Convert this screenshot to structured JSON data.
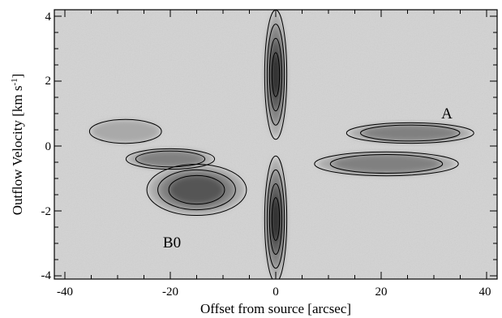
{
  "chart_data": {
    "type": "heatmap",
    "title": "",
    "xlabel": "Offset from source [arcsec]",
    "ylabel_main": "Outflow Velocity  [km s",
    "ylabel_sup": "-1",
    "ylabel_close": "]",
    "xlim": [
      -42,
      42
    ],
    "ylim": [
      -4.1,
      4.2
    ],
    "xticks": [
      -40,
      -20,
      0,
      20,
      40
    ],
    "yticks": [
      -4,
      -2,
      0,
      2,
      4
    ],
    "grid": false,
    "colormap": "grayscale, darker = stronger emission",
    "annotations": [
      {
        "text": "A",
        "x": 32.5,
        "y": 0.85
      },
      {
        "text": "B0",
        "x": -19.5,
        "y": -2.9
      }
    ],
    "features": [
      {
        "name": "systemic-red",
        "x": [
          -2,
          2
        ],
        "y": [
          0.3,
          4.1
        ],
        "peak": 1.0
      },
      {
        "name": "systemic-blue",
        "x": [
          -2,
          2
        ],
        "y": [
          -4.1,
          -0.4
        ],
        "peak": 1.0
      },
      {
        "name": "lobe-A-red",
        "x": [
          14,
          37
        ],
        "y": [
          0.1,
          0.7
        ],
        "peak": 0.55
      },
      {
        "name": "lobe-A-blue",
        "x": [
          8,
          34
        ],
        "y": [
          -0.9,
          -0.2
        ],
        "peak": 0.6
      },
      {
        "name": "lobe-B0-blue",
        "x": [
          -24,
          -6
        ],
        "y": [
          -2.1,
          -0.6
        ],
        "peak": 0.65
      },
      {
        "name": "lobe-B-red",
        "x": [
          -35,
          -22
        ],
        "y": [
          0.1,
          0.8
        ],
        "peak": 0.35
      },
      {
        "name": "lobe-B-mid",
        "x": [
          -28,
          -12
        ],
        "y": [
          -0.7,
          -0.1
        ],
        "peak": 0.45
      }
    ]
  }
}
